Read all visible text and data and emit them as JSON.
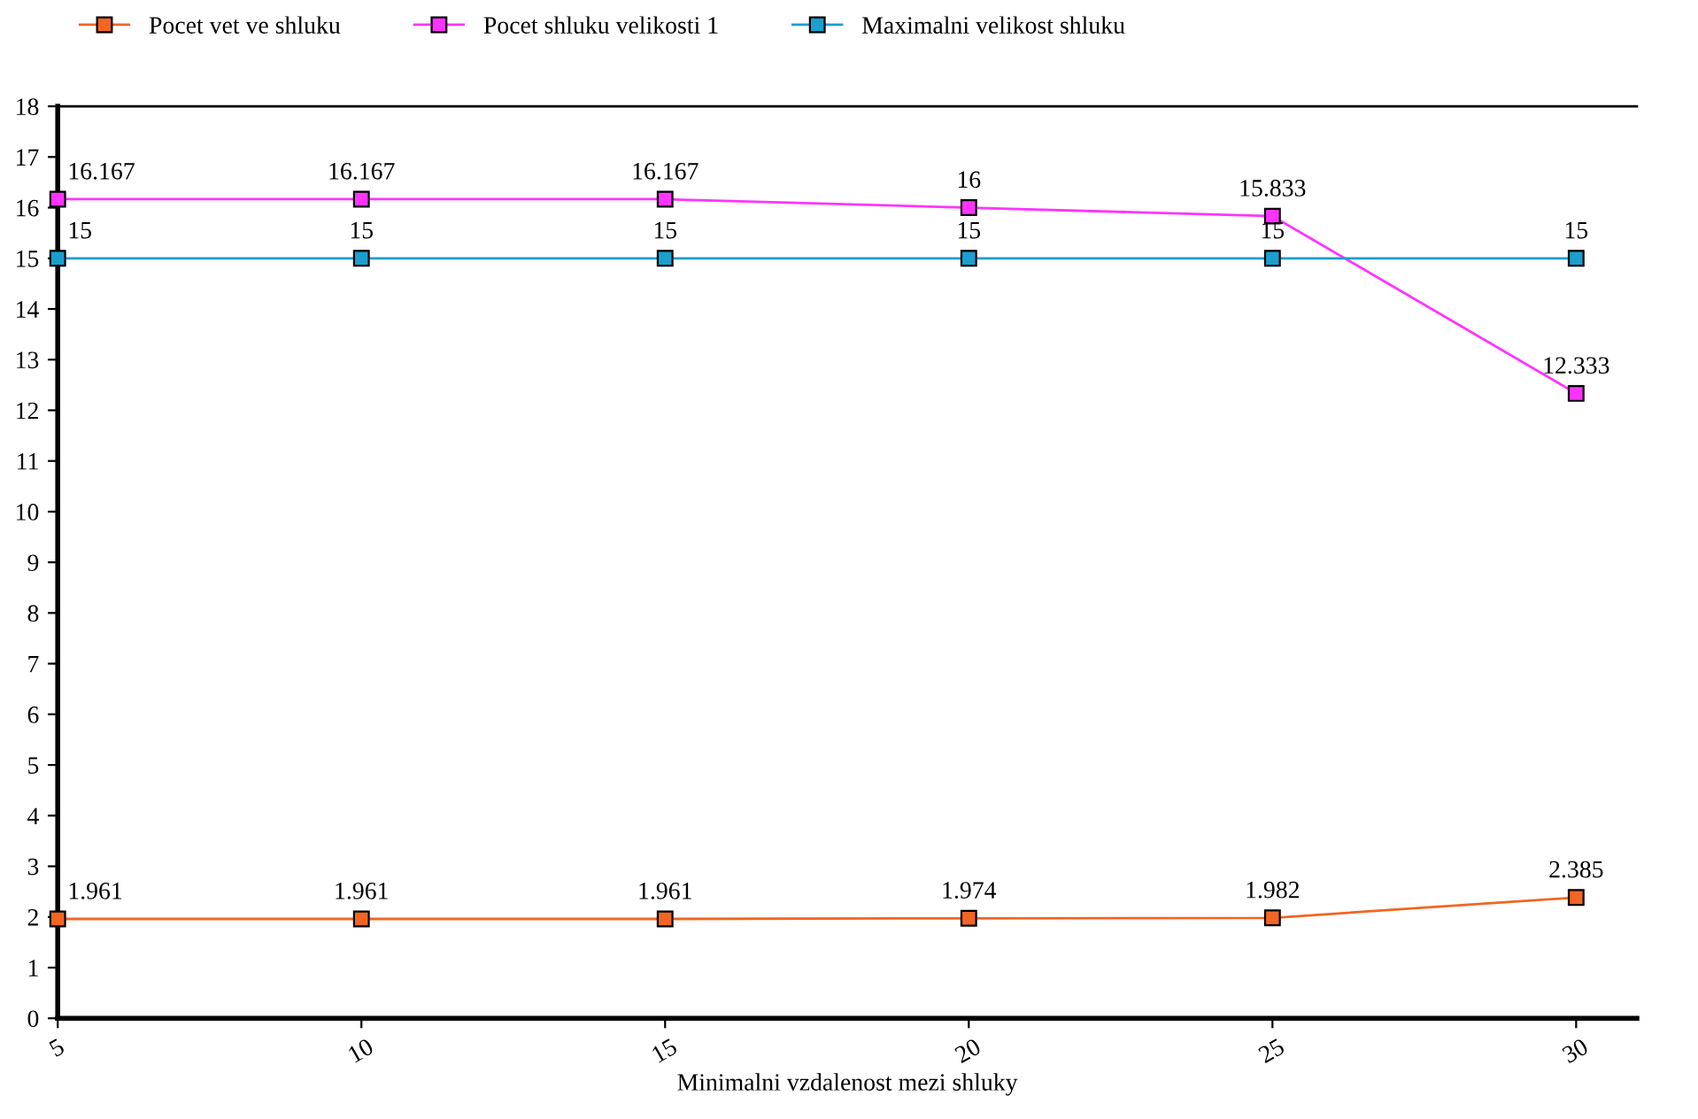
{
  "chart_data": {
    "type": "line",
    "xlabel": "Minimalni vzdalenost mezi shluky",
    "x": [
      5,
      10,
      15,
      20,
      25,
      30
    ],
    "series": [
      {
        "name": "Pocet vet ve shluku",
        "color": "#f26522",
        "values": [
          1.961,
          1.961,
          1.961,
          1.974,
          1.982,
          2.385
        ]
      },
      {
        "name": "Pocet shluku velikosti 1",
        "color": "#ff33ff",
        "values": [
          16.167,
          16.167,
          16.167,
          16,
          15.833,
          12.333
        ]
      },
      {
        "name": "Maximalni velikost shluku",
        "color": "#1a9fcf",
        "values": [
          15,
          15,
          15,
          15,
          15,
          15
        ]
      }
    ],
    "xlim": [
      5,
      31
    ],
    "xticks": [
      5,
      10,
      15,
      20,
      25,
      30
    ],
    "ylim": [
      0,
      18
    ],
    "yticks": [
      0,
      1,
      2,
      3,
      4,
      5,
      6,
      7,
      8,
      9,
      10,
      11,
      12,
      13,
      14,
      15,
      16,
      17,
      18
    ],
    "data_labels": true,
    "legend": "top left",
    "marker": "square",
    "line_style": "solid",
    "grid": false
  }
}
